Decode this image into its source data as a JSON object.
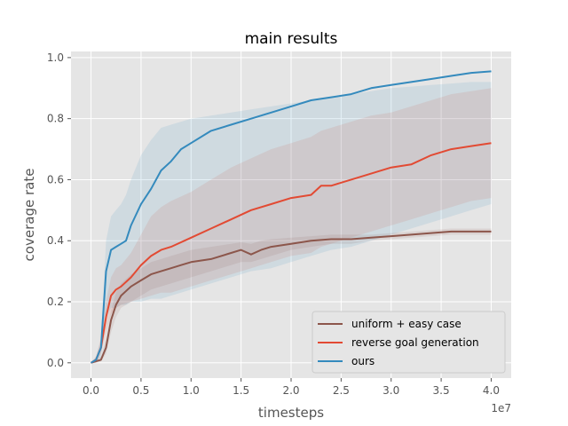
{
  "chart_data": {
    "type": "line",
    "title": "main results",
    "xlabel": "timesteps",
    "ylabel": "coverage rate",
    "x_offset_label": "1e7",
    "xlim": [
      -0.2,
      4.2
    ],
    "ylim": [
      -0.05,
      1.02
    ],
    "xticks": [
      0.0,
      0.5,
      1.0,
      1.5,
      2.0,
      2.5,
      3.0,
      3.5,
      4.0
    ],
    "xtick_labels": [
      "0.0",
      "0.5",
      "1.0",
      "1.5",
      "2.0",
      "2.5",
      "3.0",
      "3.5",
      "4.0"
    ],
    "yticks": [
      0.0,
      0.2,
      0.4,
      0.6,
      0.8,
      1.0
    ],
    "ytick_labels": [
      "0.0",
      "0.2",
      "0.4",
      "0.6",
      "0.8",
      "1.0"
    ],
    "grid": true,
    "legend_position": "lower-right",
    "series": [
      {
        "name": "uniform + easy case",
        "color": "#8c564b",
        "x": [
          0,
          0.05,
          0.1,
          0.15,
          0.2,
          0.25,
          0.3,
          0.4,
          0.5,
          0.6,
          0.7,
          0.8,
          0.9,
          1.0,
          1.2,
          1.4,
          1.5,
          1.6,
          1.7,
          1.8,
          2.0,
          2.2,
          2.4,
          2.6,
          2.8,
          3.0,
          3.2,
          3.4,
          3.6,
          3.8,
          4.0
        ],
        "y": [
          0.0,
          0.005,
          0.01,
          0.05,
          0.14,
          0.19,
          0.22,
          0.25,
          0.27,
          0.29,
          0.3,
          0.31,
          0.32,
          0.33,
          0.34,
          0.36,
          0.37,
          0.355,
          0.37,
          0.38,
          0.39,
          0.4,
          0.405,
          0.405,
          0.41,
          0.415,
          0.42,
          0.425,
          0.43,
          0.43,
          0.43
        ],
        "lower": [
          0.0,
          0.0,
          0.005,
          0.03,
          0.1,
          0.15,
          0.18,
          0.2,
          0.22,
          0.24,
          0.25,
          0.26,
          0.27,
          0.28,
          0.3,
          0.32,
          0.33,
          0.33,
          0.34,
          0.35,
          0.37,
          0.38,
          0.39,
          0.39,
          0.4,
          0.405,
          0.41,
          0.415,
          0.42,
          0.42,
          0.42
        ],
        "upper": [
          0.0,
          0.01,
          0.02,
          0.08,
          0.17,
          0.23,
          0.26,
          0.29,
          0.31,
          0.33,
          0.34,
          0.35,
          0.36,
          0.37,
          0.38,
          0.39,
          0.395,
          0.39,
          0.4,
          0.405,
          0.41,
          0.415,
          0.42,
          0.42,
          0.42,
          0.425,
          0.43,
          0.435,
          0.44,
          0.44,
          0.44
        ]
      },
      {
        "name": "reverse goal generation",
        "color": "#e24a33",
        "x": [
          0,
          0.05,
          0.1,
          0.15,
          0.2,
          0.25,
          0.3,
          0.4,
          0.5,
          0.6,
          0.7,
          0.8,
          1.0,
          1.2,
          1.4,
          1.6,
          1.8,
          2.0,
          2.2,
          2.3,
          2.4,
          2.6,
          2.8,
          3.0,
          3.2,
          3.4,
          3.6,
          3.8,
          4.0
        ],
        "y": [
          0.0,
          0.01,
          0.05,
          0.15,
          0.22,
          0.24,
          0.25,
          0.28,
          0.32,
          0.35,
          0.37,
          0.38,
          0.41,
          0.44,
          0.47,
          0.5,
          0.52,
          0.54,
          0.55,
          0.58,
          0.58,
          0.6,
          0.62,
          0.64,
          0.65,
          0.68,
          0.7,
          0.71,
          0.72
        ],
        "lower": [
          0.0,
          0.0,
          0.03,
          0.1,
          0.16,
          0.18,
          0.19,
          0.2,
          0.21,
          0.22,
          0.23,
          0.23,
          0.25,
          0.27,
          0.29,
          0.31,
          0.33,
          0.35,
          0.36,
          0.38,
          0.39,
          0.41,
          0.43,
          0.45,
          0.47,
          0.49,
          0.51,
          0.53,
          0.54
        ],
        "upper": [
          0.0,
          0.02,
          0.08,
          0.2,
          0.28,
          0.31,
          0.32,
          0.36,
          0.42,
          0.48,
          0.51,
          0.53,
          0.56,
          0.6,
          0.64,
          0.67,
          0.7,
          0.72,
          0.74,
          0.76,
          0.77,
          0.79,
          0.81,
          0.82,
          0.84,
          0.86,
          0.88,
          0.89,
          0.9
        ]
      },
      {
        "name": "ours",
        "color": "#348abd",
        "x": [
          0,
          0.05,
          0.1,
          0.15,
          0.2,
          0.25,
          0.3,
          0.35,
          0.4,
          0.5,
          0.6,
          0.7,
          0.8,
          0.9,
          1.0,
          1.2,
          1.4,
          1.6,
          1.8,
          2.0,
          2.2,
          2.4,
          2.6,
          2.8,
          3.0,
          3.2,
          3.4,
          3.6,
          3.8,
          4.0
        ],
        "y": [
          0.0,
          0.01,
          0.05,
          0.3,
          0.37,
          0.38,
          0.39,
          0.4,
          0.45,
          0.52,
          0.57,
          0.63,
          0.66,
          0.7,
          0.72,
          0.76,
          0.78,
          0.8,
          0.82,
          0.84,
          0.86,
          0.87,
          0.88,
          0.9,
          0.91,
          0.92,
          0.93,
          0.94,
          0.95,
          0.955
        ],
        "lower": [
          0.0,
          0.0,
          0.02,
          0.15,
          0.18,
          0.18,
          0.19,
          0.19,
          0.2,
          0.2,
          0.21,
          0.21,
          0.22,
          0.23,
          0.24,
          0.26,
          0.28,
          0.3,
          0.31,
          0.33,
          0.35,
          0.37,
          0.38,
          0.4,
          0.42,
          0.44,
          0.46,
          0.48,
          0.5,
          0.52
        ],
        "upper": [
          0.0,
          0.02,
          0.08,
          0.4,
          0.48,
          0.5,
          0.52,
          0.55,
          0.6,
          0.68,
          0.73,
          0.77,
          0.78,
          0.79,
          0.8,
          0.81,
          0.82,
          0.83,
          0.84,
          0.85,
          0.86,
          0.87,
          0.88,
          0.89,
          0.9,
          0.905,
          0.91,
          0.915,
          0.92,
          0.92
        ]
      }
    ]
  }
}
